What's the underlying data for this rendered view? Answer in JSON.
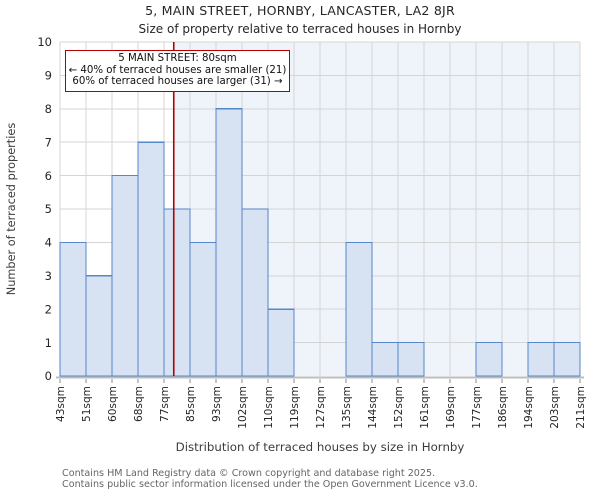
{
  "title": "5, MAIN STREET, HORNBY, LANCASTER, LA2 8JR",
  "subtitle": "Size of property relative to terraced houses in Hornby",
  "annotation": {
    "line1": "5 MAIN STREET: 80sqm",
    "line2": "← 40% of terraced houses are smaller (21)",
    "line3": "60% of terraced houses are larger (31) →"
  },
  "chart_data": {
    "type": "bar",
    "title": "5, MAIN STREET, HORNBY, LANCASTER, LA2 8JR — Size of property relative to terraced houses in Hornby",
    "xlabel": "Distribution of terraced houses by size in Hornby",
    "ylabel": "Number of terraced properties",
    "ylim": [
      0,
      10
    ],
    "yticks": [
      0,
      1,
      2,
      3,
      4,
      5,
      6,
      7,
      8,
      9,
      10
    ],
    "grid": true,
    "bin_edges_sqm": [
      43,
      51,
      60,
      68,
      77,
      85,
      93,
      102,
      110,
      119,
      127,
      135,
      144,
      152,
      161,
      169,
      177,
      186,
      194,
      203,
      211
    ],
    "x_tick_labels": [
      "43sqm",
      "51sqm",
      "60sqm",
      "68sqm",
      "77sqm",
      "85sqm",
      "93sqm",
      "102sqm",
      "110sqm",
      "119sqm",
      "127sqm",
      "135sqm",
      "144sqm",
      "152sqm",
      "161sqm",
      "169sqm",
      "177sqm",
      "186sqm",
      "194sqm",
      "203sqm",
      "211sqm"
    ],
    "values": [
      4,
      3,
      6,
      7,
      5,
      4,
      8,
      5,
      2,
      0,
      0,
      4,
      1,
      1,
      0,
      0,
      1,
      0,
      1,
      1
    ],
    "marker_value_sqm": 80,
    "smaller_count": 21,
    "larger_count": 31,
    "smaller_pct": 40,
    "larger_pct": 60
  },
  "colors": {
    "bar_fill": "#d7e2f3",
    "bar_border": "#5687c8",
    "marker_line": "#b20000",
    "annotation_border": "#b20000",
    "shaded_region": "#eff3fa",
    "grid": "#d5d5d5",
    "axis_spine": "#bdbdbd",
    "tick": "#8a8a8a",
    "text": "#262626",
    "axis_label_text": "#3c3c3c",
    "footer_text": "#666666"
  },
  "footer": {
    "line1": "Contains HM Land Registry data © Crown copyright and database right 2025.",
    "line2": "Contains public sector information licensed under the Open Government Licence v3.0."
  }
}
